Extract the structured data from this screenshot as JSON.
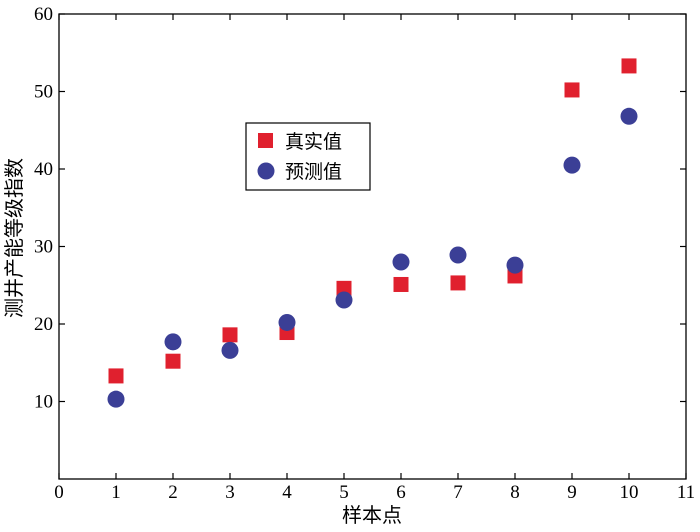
{
  "chart_data": {
    "type": "scatter",
    "xlabel": "样本点",
    "ylabel": "测井产能等级指数",
    "xlim": [
      0,
      11
    ],
    "ylim": [
      0,
      60
    ],
    "x_ticks": [
      0,
      1,
      2,
      3,
      4,
      5,
      6,
      7,
      8,
      9,
      10,
      11
    ],
    "y_ticks": [
      10,
      20,
      30,
      40,
      50,
      60
    ],
    "grid": false,
    "legend_position": "upper-left-center",
    "series": [
      {
        "name": "真实值",
        "marker": "square",
        "color": "#e0202e",
        "x": [
          1,
          2,
          3,
          4,
          5,
          6,
          7,
          8,
          9,
          10
        ],
        "y": [
          13.3,
          15.2,
          18.6,
          18.9,
          24.6,
          25.1,
          25.3,
          26.2,
          50.2,
          53.3
        ]
      },
      {
        "name": "预测值",
        "marker": "circle",
        "color": "#3b3f96",
        "x": [
          1,
          2,
          3,
          4,
          5,
          6,
          7,
          8,
          9,
          10
        ],
        "y": [
          10.3,
          17.7,
          16.6,
          20.2,
          23.1,
          28.0,
          28.9,
          27.6,
          40.5,
          46.8
        ]
      }
    ]
  }
}
